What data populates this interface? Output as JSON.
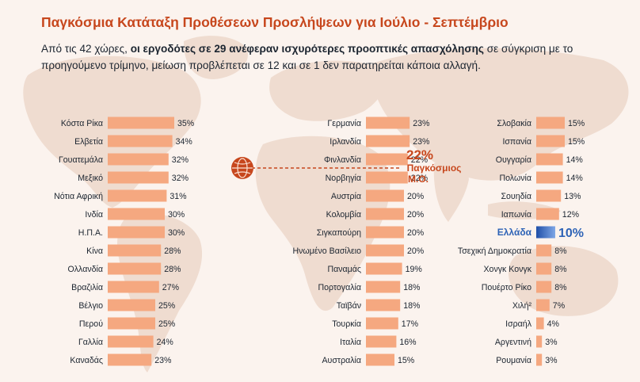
{
  "title": "Παγκόσμια Κατάταξη Προθέσεων Προσλήψεων για Ιούλιο - Σεπτέμβριο",
  "subtitle": {
    "part1": "Από τις 42 χώρες, ",
    "bold": "οι εργοδότες σε 29 ανέφεραν ισχυρότερες προοπτικές απασχόλησης",
    "part2": " σε σύγκριση με το προηγούμενο τρίμηνο, μείωση προβλέπεται σε 12 και σε 1 δεν παρατηρείται κάποια αλλαγή."
  },
  "colors": {
    "bar": "#f5a880",
    "highlight": "#3367be",
    "accent": "#c7471d",
    "map": "#efdcd0",
    "background": "#fbf3ee"
  },
  "chart_data": {
    "type": "bar",
    "orientation": "horizontal",
    "unit": "%",
    "average": {
      "value": 22,
      "label": "22%",
      "label_line1": "Παγκόσμιος",
      "label_line2": "Μ.Ο.",
      "icon": "globe-icon"
    },
    "highlight": "Ελλάδα",
    "columns": [
      {
        "categories": [
          "Κόστα Ρίκα",
          "Ελβετία",
          "Γουατεμάλα",
          "Μεξικό",
          "Νότια Αφρική",
          "Ινδία",
          "Η.Π.Α.",
          "Κίνα",
          "Ολλανδία",
          "Βραζιλία",
          "Βέλγιο",
          "Περού",
          "Γαλλία",
          "Καναδάς"
        ],
        "values": [
          35,
          34,
          32,
          32,
          31,
          30,
          30,
          28,
          28,
          27,
          25,
          25,
          24,
          23
        ],
        "value_labels": [
          "35%",
          "34%",
          "32%",
          "32%",
          "31%",
          "30%",
          "30%",
          "28%",
          "28%",
          "27%",
          "25%",
          "25%",
          "24%",
          "23%"
        ]
      },
      {
        "categories": [
          "Γερμανία",
          "Ιρλανδία",
          "Φινλανδία",
          "Νορβηγία",
          "Αυστρία",
          "Κολομβία",
          "Σιγκαπούρη",
          "Ηνωμένο Βασίλειο",
          "Παναμάς",
          "Πορτογαλία",
          "Ταϊβάν",
          "Τουρκία",
          "Ιταλία",
          "Αυστραλία"
        ],
        "values": [
          23,
          23,
          22,
          22,
          20,
          20,
          20,
          20,
          19,
          18,
          18,
          17,
          16,
          15
        ],
        "value_labels": [
          "23%",
          "23%",
          "22%",
          "22%",
          "20%",
          "20%",
          "20%",
          "20%",
          "19%",
          "18%",
          "18%",
          "17%",
          "16%",
          "15%"
        ]
      },
      {
        "categories": [
          "Σλοβακία",
          "Ισπανία",
          "Ουγγαρία",
          "Πολωνία",
          "Σουηδία",
          "Ιαπωνία",
          "Ελλάδα",
          "Τσεχική Δημοκρατία",
          "Χονγκ Κονγκ",
          "Πουέρτο Ρίκο",
          "Χιλή²",
          "Ισραήλ",
          "Αργεντινή",
          "Ρουμανία"
        ],
        "values": [
          15,
          15,
          14,
          14,
          13,
          12,
          10,
          8,
          8,
          8,
          7,
          4,
          3,
          3
        ],
        "value_labels": [
          "15%",
          "15%",
          "14%",
          "14%",
          "13%",
          "12%",
          "10%",
          "8%",
          "8%",
          "8%",
          "7%",
          "4%",
          "3%",
          "3%"
        ]
      }
    ]
  }
}
